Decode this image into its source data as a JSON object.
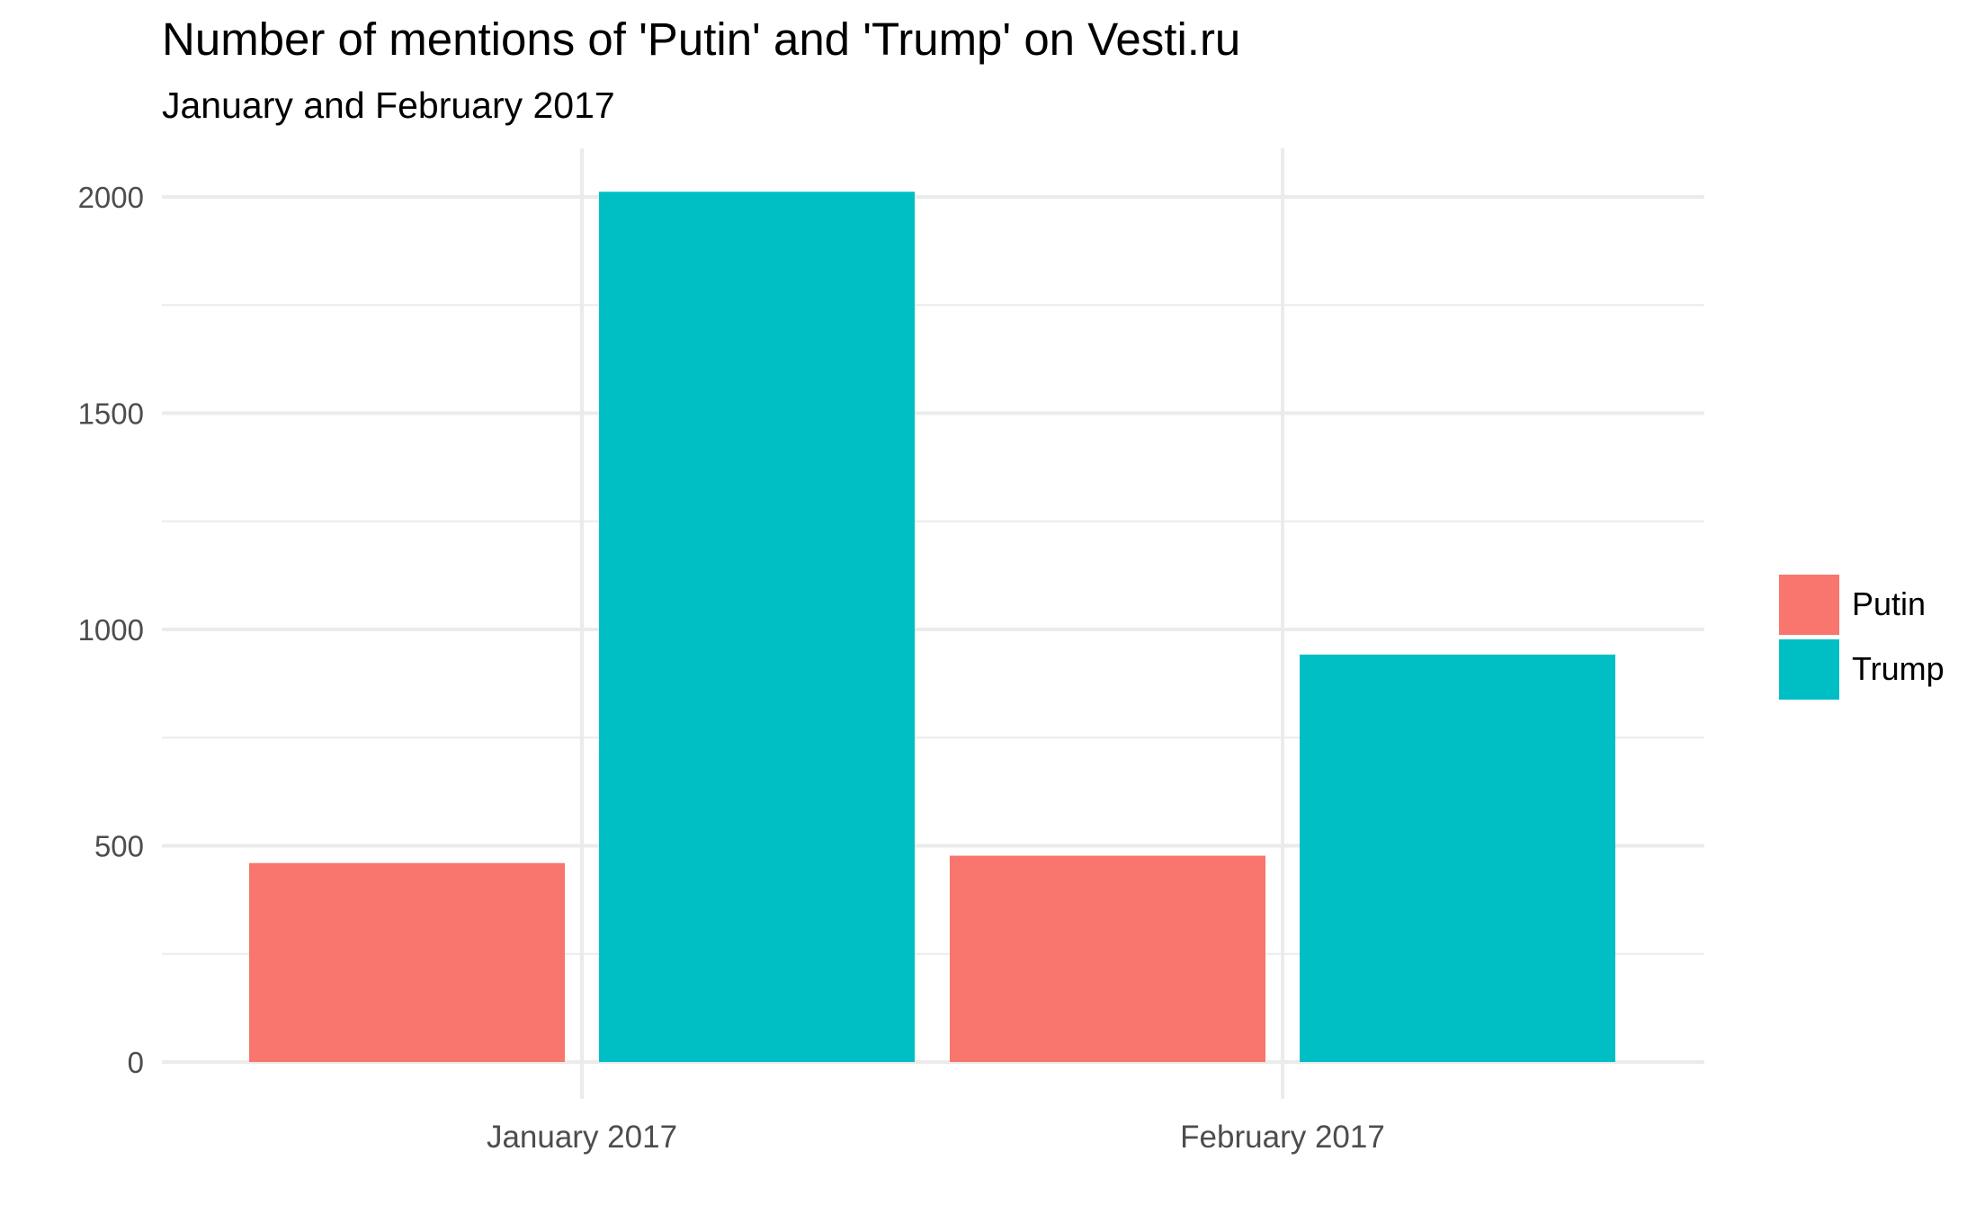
{
  "chart_data": {
    "type": "bar",
    "title": "Number of mentions of 'Putin' and 'Trump' on Vesti.ru",
    "subtitle": "January and February 2017",
    "xlabel": "",
    "ylabel": "",
    "categories": [
      "January 2017",
      "February 2017"
    ],
    "series": [
      {
        "name": "Putin",
        "color": "#F8766D",
        "values": [
          460,
          477
        ]
      },
      {
        "name": "Trump",
        "color": "#00BFC4",
        "values": [
          2012,
          942
        ]
      }
    ],
    "ylim": [
      0,
      2100
    ],
    "yticks": [
      0,
      500,
      1000,
      1500,
      2000
    ],
    "grid": true,
    "legend_position": "right"
  }
}
